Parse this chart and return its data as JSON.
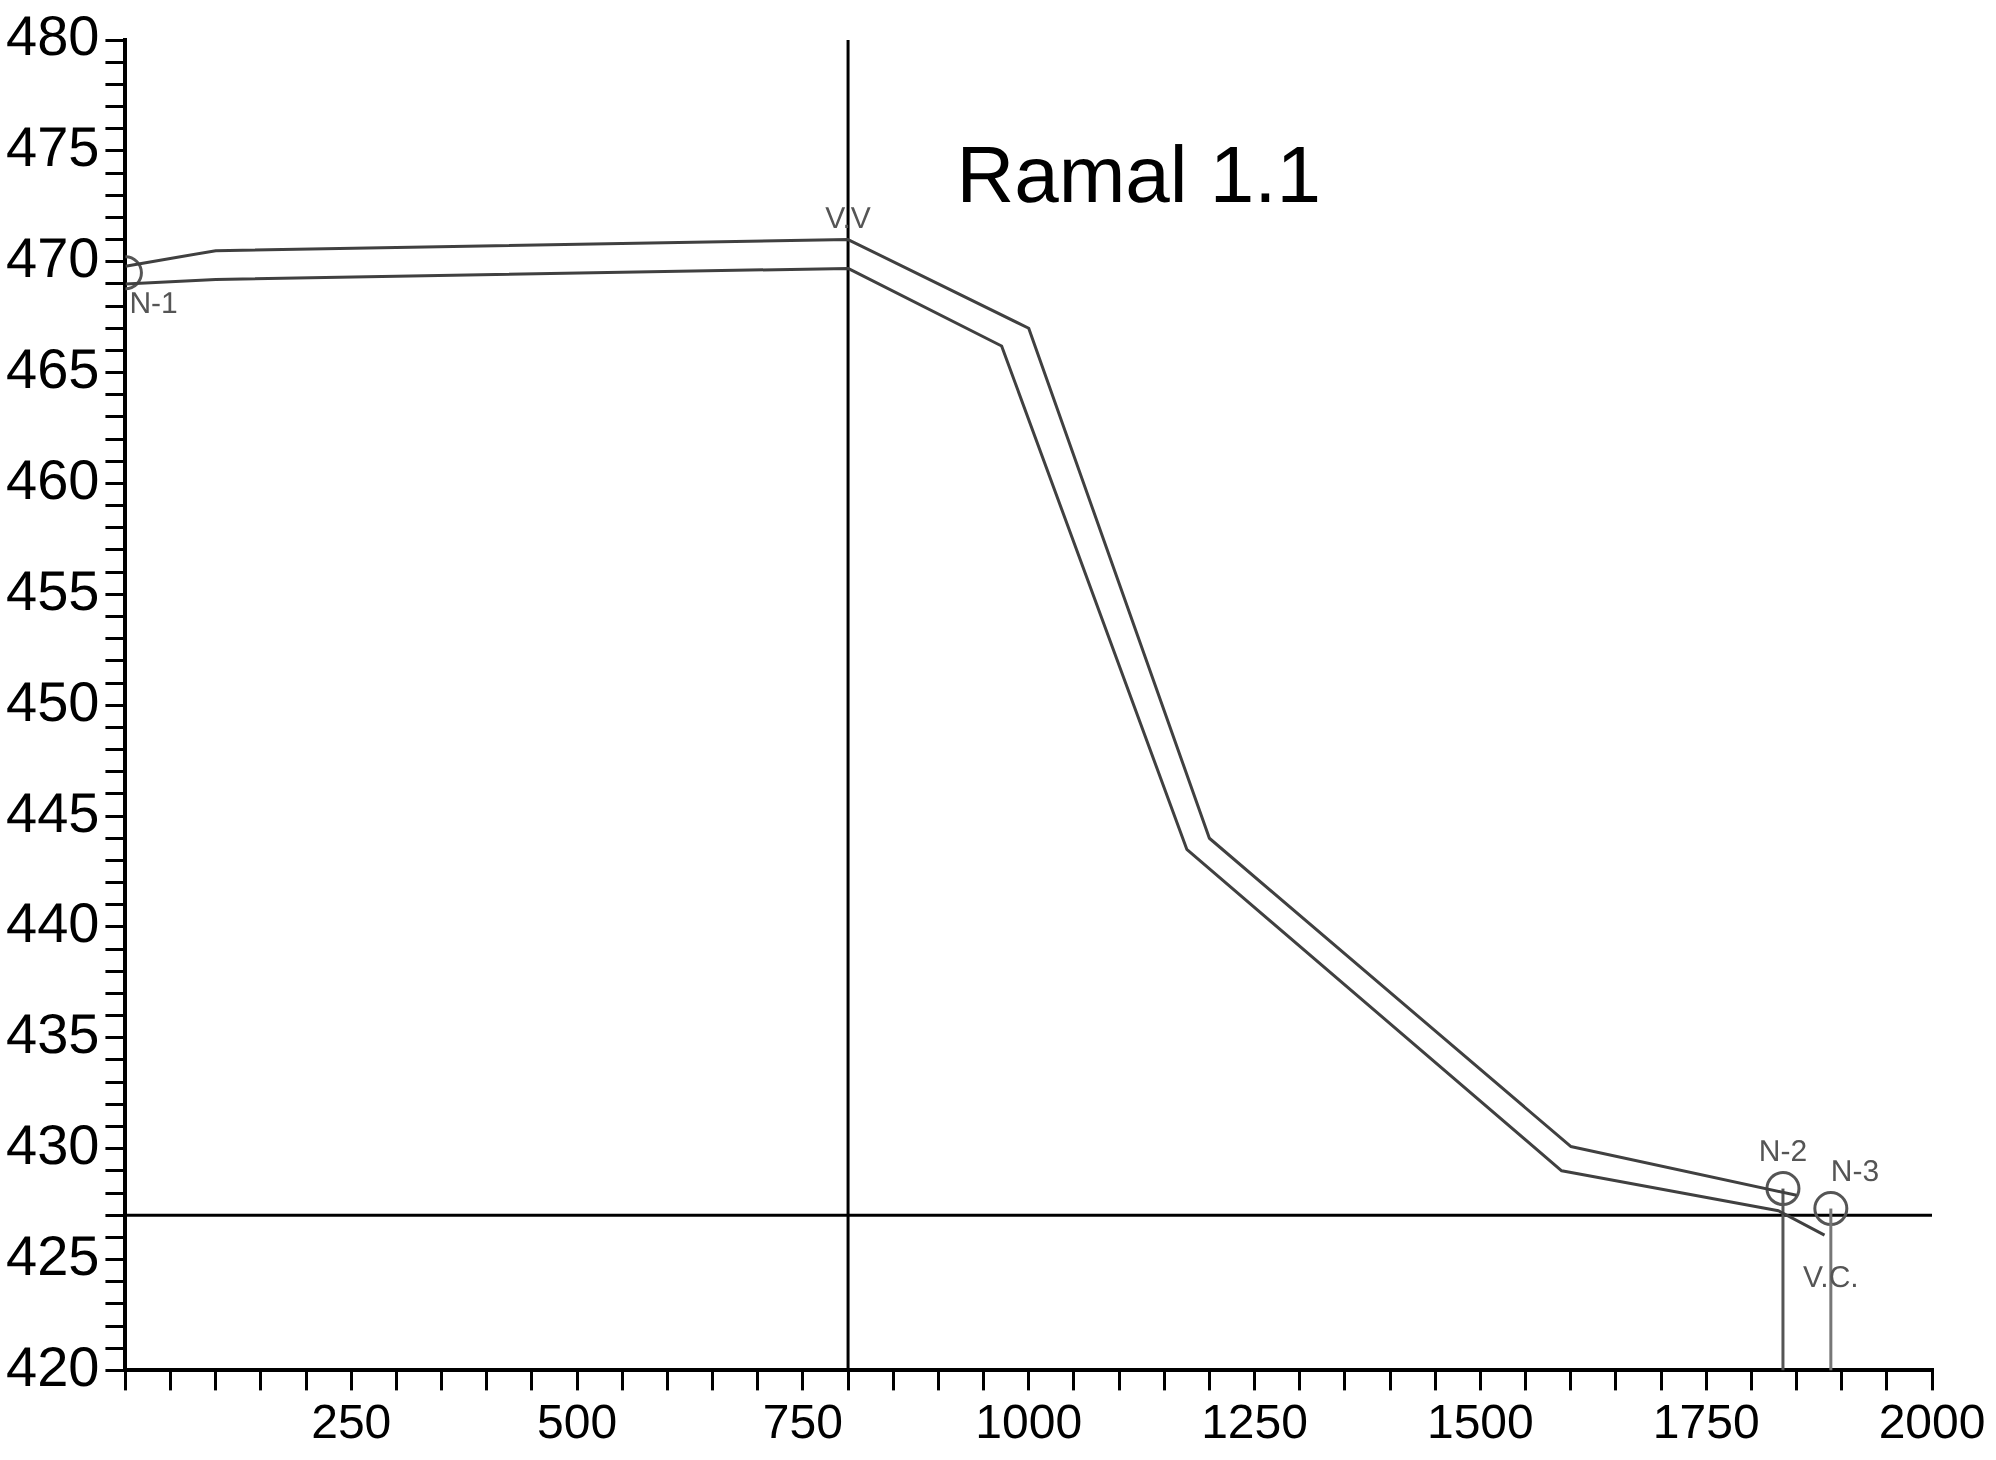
{
  "chart_data": {
    "type": "line",
    "title": "Ramal 1.1",
    "xlim": [
      0,
      2000
    ],
    "ylim": [
      420,
      480
    ],
    "xticks": [
      {
        "value": 0,
        "label": null
      },
      {
        "value": 50,
        "label": null
      },
      {
        "value": 100,
        "label": null
      },
      {
        "value": 150,
        "label": null
      },
      {
        "value": 200,
        "label": null
      },
      250,
      {
        "value": 300,
        "label": null
      },
      {
        "value": 350,
        "label": null
      },
      {
        "value": 400,
        "label": null
      },
      {
        "value": 450,
        "label": null
      },
      500,
      {
        "value": 550,
        "label": null
      },
      {
        "value": 600,
        "label": null
      },
      {
        "value": 650,
        "label": null
      },
      {
        "value": 700,
        "label": null
      },
      750,
      {
        "value": 800,
        "label": null
      },
      {
        "value": 850,
        "label": null
      },
      {
        "value": 900,
        "label": null
      },
      {
        "value": 950,
        "label": null
      },
      1000,
      {
        "value": 1050,
        "label": null
      },
      {
        "value": 1100,
        "label": null
      },
      {
        "value": 1150,
        "label": null
      },
      {
        "value": 1200,
        "label": null
      },
      1250,
      {
        "value": 1300,
        "label": null
      },
      {
        "value": 1350,
        "label": null
      },
      {
        "value": 1400,
        "label": null
      },
      {
        "value": 1450,
        "label": null
      },
      1500,
      {
        "value": 1550,
        "label": null
      },
      {
        "value": 1600,
        "label": null
      },
      {
        "value": 1650,
        "label": null
      },
      {
        "value": 1700,
        "label": null
      },
      1750,
      {
        "value": 1800,
        "label": null
      },
      {
        "value": 1850,
        "label": null
      },
      {
        "value": 1900,
        "label": null
      },
      {
        "value": 1950,
        "label": null
      },
      2000
    ],
    "yticks": [
      420,
      {
        "value": 421,
        "label": null
      },
      {
        "value": 422,
        "label": null
      },
      {
        "value": 423,
        "label": null
      },
      {
        "value": 424,
        "label": null
      },
      425,
      {
        "value": 426,
        "label": null
      },
      {
        "value": 427,
        "label": null
      },
      {
        "value": 428,
        "label": null
      },
      {
        "value": 429,
        "label": null
      },
      430,
      {
        "value": 431,
        "label": null
      },
      {
        "value": 432,
        "label": null
      },
      {
        "value": 433,
        "label": null
      },
      {
        "value": 434,
        "label": null
      },
      435,
      {
        "value": 436,
        "label": null
      },
      {
        "value": 437,
        "label": null
      },
      {
        "value": 438,
        "label": null
      },
      {
        "value": 439,
        "label": null
      },
      440,
      {
        "value": 441,
        "label": null
      },
      {
        "value": 442,
        "label": null
      },
      {
        "value": 443,
        "label": null
      },
      {
        "value": 444,
        "label": null
      },
      445,
      {
        "value": 446,
        "label": null
      },
      {
        "value": 447,
        "label": null
      },
      {
        "value": 448,
        "label": null
      },
      {
        "value": 449,
        "label": null
      },
      450,
      {
        "value": 451,
        "label": null
      },
      {
        "value": 452,
        "label": null
      },
      {
        "value": 453,
        "label": null
      },
      {
        "value": 454,
        "label": null
      },
      455,
      {
        "value": 456,
        "label": null
      },
      {
        "value": 457,
        "label": null
      },
      {
        "value": 458,
        "label": null
      },
      {
        "value": 459,
        "label": null
      },
      460,
      {
        "value": 461,
        "label": null
      },
      {
        "value": 462,
        "label": null
      },
      {
        "value": 463,
        "label": null
      },
      {
        "value": 464,
        "label": null
      },
      465,
      {
        "value": 466,
        "label": null
      },
      {
        "value": 467,
        "label": null
      },
      {
        "value": 468,
        "label": null
      },
      {
        "value": 469,
        "label": null
      },
      470,
      {
        "value": 471,
        "label": null
      },
      {
        "value": 472,
        "label": null
      },
      {
        "value": 473,
        "label": null
      },
      {
        "value": 474,
        "label": null
      },
      475,
      {
        "value": 476,
        "label": null
      },
      {
        "value": 477,
        "label": null
      },
      {
        "value": 478,
        "label": null
      },
      {
        "value": 479,
        "label": null
      },
      480
    ],
    "series": [
      {
        "color": "#404040",
        "x": [
          0,
          100,
          800,
          1000,
          1200,
          1600,
          1850
        ],
        "values": [
          469.8,
          470.5,
          471.0,
          467.0,
          444.0,
          430.1,
          427.9
        ]
      },
      {
        "color": "#404040",
        "x": [
          0,
          100,
          800,
          970,
          1175,
          1590,
          1830,
          1881
        ],
        "values": [
          469.0,
          469.2,
          469.7,
          466.2,
          443.5,
          429.0,
          427.2,
          426.1
        ]
      },
      {
        "color": "#555555",
        "x": [
          1835,
          1835
        ],
        "values": [
          420,
          428.2
        ]
      },
      {
        "color": "#777777",
        "x": [
          1888,
          1888
        ],
        "values": [
          420,
          427.3
        ]
      },
      {
        "type": "scatter",
        "marker": "circle",
        "color": "#555555",
        "x": [
          0,
          1835,
          1888
        ],
        "values": [
          469.5,
          428.2,
          427.3
        ]
      }
    ],
    "ref_lines": [
      {
        "axis": "x",
        "value": 800,
        "color": "#000000"
      },
      {
        "axis": "y",
        "value": 427,
        "color": "#000000"
      }
    ],
    "annotations": [
      {
        "text": "N-1",
        "x": 0,
        "y": 469.5
      },
      {
        "text": "V.V",
        "x": 800,
        "y": 471.0
      },
      {
        "text": "N-2",
        "x": 1835,
        "y": 428.2
      },
      {
        "text": "N-3",
        "x": 1888,
        "y": 427.3
      },
      {
        "text": "V.C.",
        "x": 1888,
        "y": 426.1
      }
    ],
    "grid": false,
    "legend": false
  }
}
